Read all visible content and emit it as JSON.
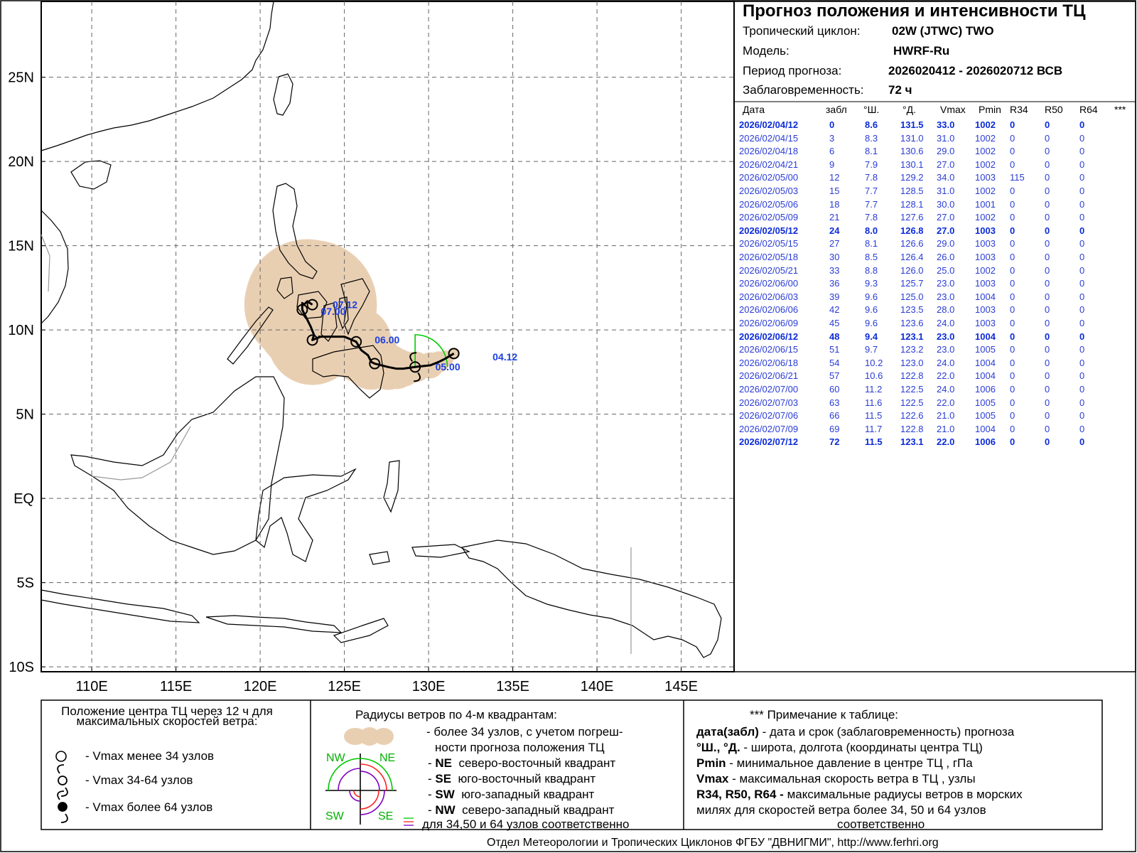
{
  "header": {
    "title": "Прогноз положения и интенсивности ТЦ",
    "cyclone_label": "Тропический циклон:",
    "cyclone_value": "02W (JTWC)  TWO",
    "model_label": "Модель:",
    "model_value": "HWRF-Ru",
    "period_label": "Период прогноза:",
    "period_value": "2026020412 - 2026020712 ВСВ",
    "lead_label": "Заблаговременность:",
    "lead_value": "72 ч"
  },
  "table": {
    "columns": [
      "Дата",
      "забл",
      "°Ш.",
      "°Д.",
      "Vmax",
      "Pmin",
      "R34",
      "R50",
      "R64",
      "***"
    ],
    "rows": [
      {
        "date": "2026/02/04/12",
        "lead": "0",
        "lat": "8.6",
        "lon": "131.5",
        "vmax": "33.0",
        "pmin": "1002",
        "r34": "0",
        "r50": "0",
        "r64": "0",
        "bold": true
      },
      {
        "date": "2026/02/04/15",
        "lead": "3",
        "lat": "8.3",
        "lon": "131.0",
        "vmax": "31.0",
        "pmin": "1002",
        "r34": "0",
        "r50": "0",
        "r64": "0",
        "bold": false
      },
      {
        "date": "2026/02/04/18",
        "lead": "6",
        "lat": "8.1",
        "lon": "130.6",
        "vmax": "29.0",
        "pmin": "1002",
        "r34": "0",
        "r50": "0",
        "r64": "0",
        "bold": false
      },
      {
        "date": "2026/02/04/21",
        "lead": "9",
        "lat": "7.9",
        "lon": "130.1",
        "vmax": "27.0",
        "pmin": "1002",
        "r34": "0",
        "r50": "0",
        "r64": "0",
        "bold": false
      },
      {
        "date": "2026/02/05/00",
        "lead": "12",
        "lat": "7.8",
        "lon": "129.2",
        "vmax": "34.0",
        "pmin": "1003",
        "r34": "115",
        "r50": "0",
        "r64": "0",
        "bold": false
      },
      {
        "date": "2026/02/05/03",
        "lead": "15",
        "lat": "7.7",
        "lon": "128.5",
        "vmax": "31.0",
        "pmin": "1002",
        "r34": "0",
        "r50": "0",
        "r64": "0",
        "bold": false
      },
      {
        "date": "2026/02/05/06",
        "lead": "18",
        "lat": "7.7",
        "lon": "128.1",
        "vmax": "30.0",
        "pmin": "1001",
        "r34": "0",
        "r50": "0",
        "r64": "0",
        "bold": false
      },
      {
        "date": "2026/02/05/09",
        "lead": "21",
        "lat": "7.8",
        "lon": "127.6",
        "vmax": "27.0",
        "pmin": "1002",
        "r34": "0",
        "r50": "0",
        "r64": "0",
        "bold": false
      },
      {
        "date": "2026/02/05/12",
        "lead": "24",
        "lat": "8.0",
        "lon": "126.8",
        "vmax": "27.0",
        "pmin": "1003",
        "r34": "0",
        "r50": "0",
        "r64": "0",
        "bold": true
      },
      {
        "date": "2026/02/05/15",
        "lead": "27",
        "lat": "8.1",
        "lon": "126.6",
        "vmax": "29.0",
        "pmin": "1003",
        "r34": "0",
        "r50": "0",
        "r64": "0",
        "bold": false
      },
      {
        "date": "2026/02/05/18",
        "lead": "30",
        "lat": "8.5",
        "lon": "126.4",
        "vmax": "26.0",
        "pmin": "1003",
        "r34": "0",
        "r50": "0",
        "r64": "0",
        "bold": false
      },
      {
        "date": "2026/02/05/21",
        "lead": "33",
        "lat": "8.8",
        "lon": "126.0",
        "vmax": "25.0",
        "pmin": "1002",
        "r34": "0",
        "r50": "0",
        "r64": "0",
        "bold": false
      },
      {
        "date": "2026/02/06/00",
        "lead": "36",
        "lat": "9.3",
        "lon": "125.7",
        "vmax": "23.0",
        "pmin": "1003",
        "r34": "0",
        "r50": "0",
        "r64": "0",
        "bold": false
      },
      {
        "date": "2026/02/06/03",
        "lead": "39",
        "lat": "9.6",
        "lon": "125.0",
        "vmax": "23.0",
        "pmin": "1004",
        "r34": "0",
        "r50": "0",
        "r64": "0",
        "bold": false
      },
      {
        "date": "2026/02/06/06",
        "lead": "42",
        "lat": "9.6",
        "lon": "123.5",
        "vmax": "28.0",
        "pmin": "1003",
        "r34": "0",
        "r50": "0",
        "r64": "0",
        "bold": false
      },
      {
        "date": "2026/02/06/09",
        "lead": "45",
        "lat": "9.6",
        "lon": "123.6",
        "vmax": "24.0",
        "pmin": "1003",
        "r34": "0",
        "r50": "0",
        "r64": "0",
        "bold": false
      },
      {
        "date": "2026/02/06/12",
        "lead": "48",
        "lat": "9.4",
        "lon": "123.1",
        "vmax": "23.0",
        "pmin": "1004",
        "r34": "0",
        "r50": "0",
        "r64": "0",
        "bold": true
      },
      {
        "date": "2026/02/06/15",
        "lead": "51",
        "lat": "9.7",
        "lon": "123.2",
        "vmax": "23.0",
        "pmin": "1005",
        "r34": "0",
        "r50": "0",
        "r64": "0",
        "bold": false
      },
      {
        "date": "2026/02/06/18",
        "lead": "54",
        "lat": "10.2",
        "lon": "123.0",
        "vmax": "24.0",
        "pmin": "1004",
        "r34": "0",
        "r50": "0",
        "r64": "0",
        "bold": false
      },
      {
        "date": "2026/02/06/21",
        "lead": "57",
        "lat": "10.6",
        "lon": "122.8",
        "vmax": "22.0",
        "pmin": "1004",
        "r34": "0",
        "r50": "0",
        "r64": "0",
        "bold": false
      },
      {
        "date": "2026/02/07/00",
        "lead": "60",
        "lat": "11.2",
        "lon": "122.5",
        "vmax": "24.0",
        "pmin": "1006",
        "r34": "0",
        "r50": "0",
        "r64": "0",
        "bold": false
      },
      {
        "date": "2026/02/07/03",
        "lead": "63",
        "lat": "11.6",
        "lon": "122.5",
        "vmax": "22.0",
        "pmin": "1005",
        "r34": "0",
        "r50": "0",
        "r64": "0",
        "bold": false
      },
      {
        "date": "2026/02/07/06",
        "lead": "66",
        "lat": "11.5",
        "lon": "122.6",
        "vmax": "21.0",
        "pmin": "1005",
        "r34": "0",
        "r50": "0",
        "r64": "0",
        "bold": false
      },
      {
        "date": "2026/02/07/09",
        "lead": "69",
        "lat": "11.7",
        "lon": "122.8",
        "vmax": "21.0",
        "pmin": "1004",
        "r34": "0",
        "r50": "0",
        "r64": "0",
        "bold": false
      },
      {
        "date": "2026/02/07/12",
        "lead": "72",
        "lat": "11.5",
        "lon": "123.1",
        "vmax": "22.0",
        "pmin": "1006",
        "r34": "0",
        "r50": "0",
        "r64": "0",
        "bold": true
      }
    ]
  },
  "map": {
    "lat_labels": [
      "25N",
      "20N",
      "15N",
      "10N",
      "5N",
      "EQ",
      "5S",
      "10S"
    ],
    "lon_labels": [
      "110E",
      "115E",
      "120E",
      "125E",
      "130E",
      "135E",
      "140E",
      "145E"
    ],
    "track_labels": [
      {
        "text": "04.12",
        "lon": 133.8,
        "lat": 8.2
      },
      {
        "text": "05.00",
        "lon": 130.4,
        "lat": 7.6
      },
      {
        "text": "06.00",
        "lon": 126.8,
        "lat": 9.2
      },
      {
        "text": "07.00",
        "lon": 123.6,
        "lat": 10.9
      },
      {
        "text": "07.12",
        "lon": 124.3,
        "lat": 11.3
      }
    ],
    "colors": {
      "track": "#000000",
      "uncertainty": "#e9cfb2",
      "r34": "#00cc00",
      "labels": "#1a3fe0",
      "land": "#000000",
      "grid": "#666666"
    }
  },
  "legend": {
    "center_title": "Положение центра ТЦ через 12 ч для максимальных скоростей ветра:",
    "center_items": [
      {
        "icon": "circle-icon",
        "text": "- Vmax  менее 34 узлов"
      },
      {
        "icon": "storm-icon",
        "text": "- Vmax  34-64 узлов"
      },
      {
        "icon": "filled-storm-icon",
        "text": "- Vmax  более 64 узлов"
      }
    ],
    "radii_title": "Радиусы ветров по 4-м квадрантам:",
    "radii_line1": "- более 34 узлов, с учетом погреш-",
    "radii_line2": "ности прогноза положения ТЦ",
    "quadrants": [
      {
        "code": "NE",
        "text": "северо-восточный квадрант"
      },
      {
        "code": "SE",
        "text": "юго-восточный квадрант"
      },
      {
        "code": "SW",
        "text": "юго-западный квадрант"
      },
      {
        "code": "NW",
        "text": "северо-западный квадрант"
      }
    ],
    "radii_last": "для 34,50 и 64 узлов соответственно",
    "quad_labels": {
      "nw": "NW",
      "ne": "NE",
      "sw": "SW",
      "se": "SE"
    },
    "note_title": "*** Примечание к таблице:",
    "notes": [
      {
        "key": "дата(забл)",
        "text": " - дата и срок (заблаговременность) прогноза"
      },
      {
        "key": "°Ш., °Д.",
        "text": " - широта, долгота   (координаты центра ТЦ)"
      },
      {
        "key": "Pmin",
        "text": "  - минимальное давление в центре ТЦ , гПа"
      },
      {
        "key": "Vmax",
        "text": "  -  максимальная скорость ветра в ТЦ , узлы"
      },
      {
        "key": "R34, R50, R64 -",
        "text": "  максимальные радиусы ветров в морских"
      }
    ],
    "notes_cont1": "милях для скоростей ветра более 34, 50 и 64 узлов",
    "notes_cont2": "соответственно"
  },
  "footer": "Отдел Метеорологии и Тропических Циклонов ФГБУ \"ДВНИГМИ\",  http://www.ferhri.org"
}
